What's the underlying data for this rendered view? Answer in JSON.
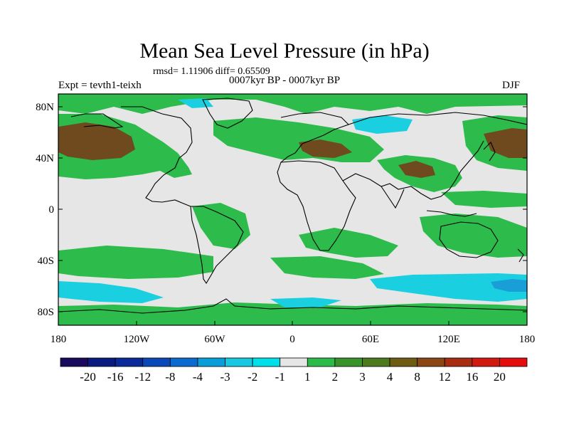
{
  "title": "Mean Sea Level Pressure (in hPa)",
  "stats_line": "rmsd= 1.11906 diff= 0.65509",
  "experiment_label": "Expt = tevth1-teixh",
  "period_label": "0007kyr BP - 0007kyr BP",
  "season_label": "DJF",
  "y_axis_labels": [
    "80N",
    "40N",
    "0",
    "40S",
    "80S"
  ],
  "x_axis_labels": [
    "180",
    "120W",
    "60W",
    "0",
    "60E",
    "120E",
    "180"
  ],
  "colorbar": {
    "labels": [
      "-20",
      "-16",
      "-12",
      "-8",
      "-4",
      "-3",
      "-2",
      "-1",
      "1",
      "2",
      "3",
      "4",
      "8",
      "12",
      "16",
      "20"
    ],
    "colors": [
      "#1a0a5e",
      "#0a1a7e",
      "#0a2a9a",
      "#0a48b8",
      "#0a6ad0",
      "#0a9ed8",
      "#18c8e0",
      "#00e0e8",
      "#e6e6e6",
      "#2bbb4a",
      "#38942a",
      "#4e7a1e",
      "#6e5c14",
      "#8a4614",
      "#a82c12",
      "#d01a10",
      "#e40c0c"
    ]
  },
  "palette": {
    "neutral": "#e6e6e6",
    "green": "#2dbb4b",
    "dark_green": "#3c8c28",
    "brown": "#6e4a1e",
    "cyan": "#1ad0e0",
    "blue": "#1a9ed8",
    "coast": "#000000"
  }
}
